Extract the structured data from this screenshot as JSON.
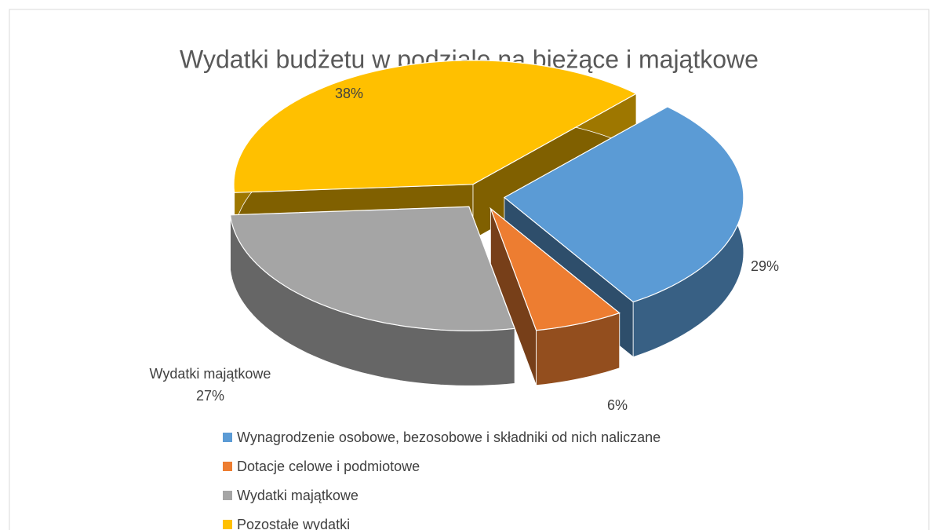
{
  "chart_data": {
    "type": "pie3d",
    "title": "Wydatki budżetu w podziale na bieżące i majątkowe",
    "categories": [
      "Wynagrodzenie osobowe, bezosobowe i składniki od nich naliczane",
      "Dotacje celowe i podmiotowe",
      "Wydatki majątkowe",
      "Pozostałe wydatki"
    ],
    "values": [
      29,
      6,
      27,
      38
    ],
    "value_labels": [
      "29%",
      "6%",
      "27%",
      "38%"
    ],
    "colors": [
      "#5b9bd5",
      "#ed7d31",
      "#a5a5a5",
      "#ffc000"
    ],
    "legend": "bottom"
  }
}
